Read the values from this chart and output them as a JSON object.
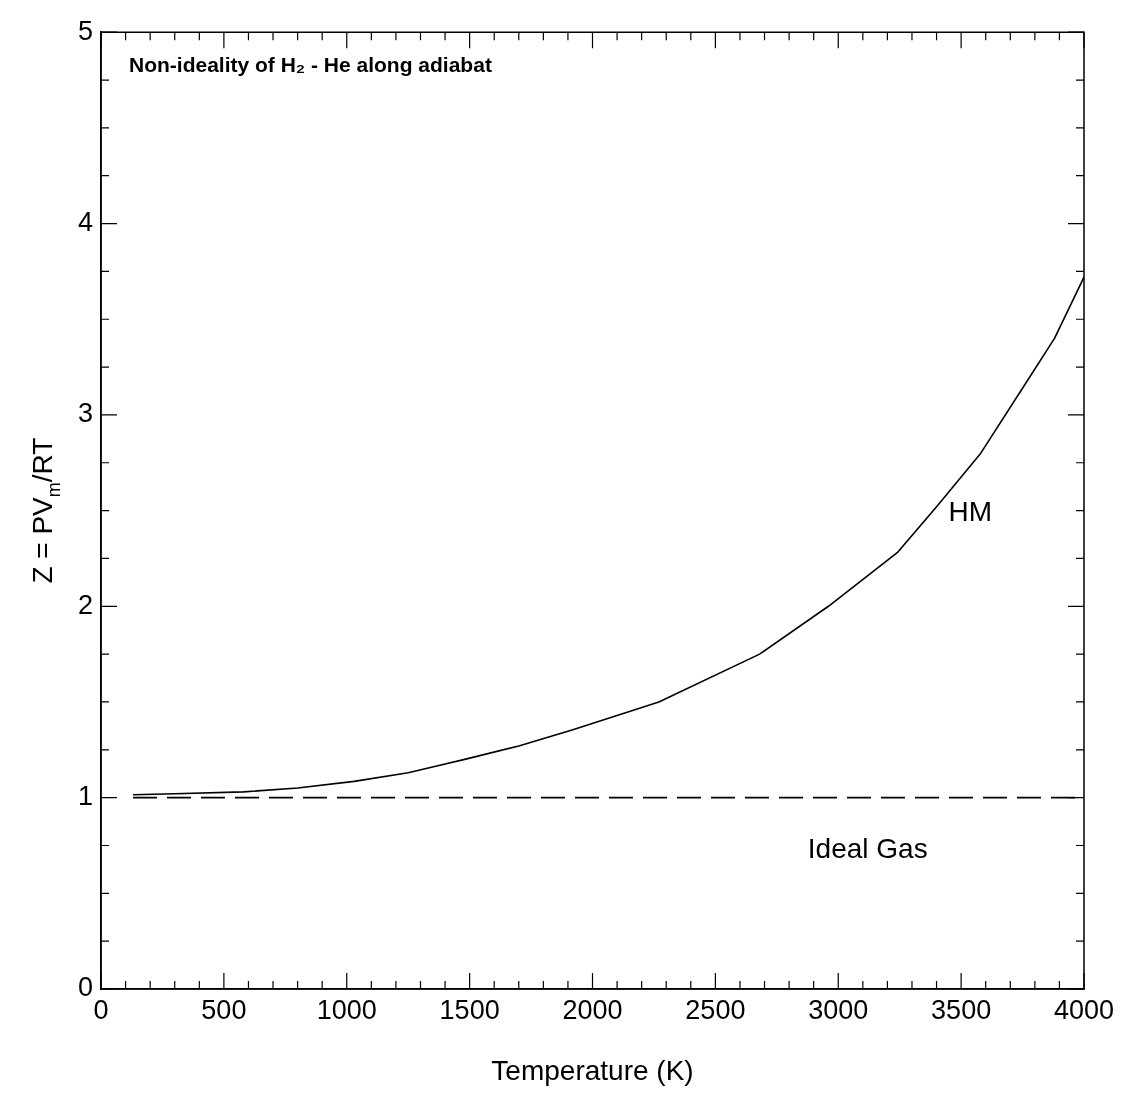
{
  "chart_data": {
    "type": "line",
    "title": "Non-ideality of H₂ - He along adiabat",
    "xlabel": "Temperature (K)",
    "ylabel": "Z = PV$_{m}$/RT",
    "xlim": [
      0,
      4000
    ],
    "ylim": [
      0,
      5
    ],
    "xticks": [
      0,
      {
        "value": 100,
        "label": null
      },
      {
        "value": 200,
        "label": null
      },
      {
        "value": 300,
        "label": null
      },
      {
        "value": 400,
        "label": null
      },
      500,
      {
        "value": 600,
        "label": null
      },
      {
        "value": 700,
        "label": null
      },
      {
        "value": 800,
        "label": null
      },
      {
        "value": 900,
        "label": null
      },
      1000,
      {
        "value": 1100,
        "label": null
      },
      {
        "value": 1200,
        "label": null
      },
      {
        "value": 1300,
        "label": null
      },
      {
        "value": 1400,
        "label": null
      },
      1500,
      {
        "value": 1600,
        "label": null
      },
      {
        "value": 1700,
        "label": null
      },
      {
        "value": 1800,
        "label": null
      },
      {
        "value": 1900,
        "label": null
      },
      2000,
      {
        "value": 2100,
        "label": null
      },
      {
        "value": 2200,
        "label": null
      },
      {
        "value": 2300,
        "label": null
      },
      {
        "value": 2400,
        "label": null
      },
      2500,
      {
        "value": 2600,
        "label": null
      },
      {
        "value": 2700,
        "label": null
      },
      {
        "value": 2800,
        "label": null
      },
      {
        "value": 2900,
        "label": null
      },
      3000,
      {
        "value": 3100,
        "label": null
      },
      {
        "value": 3200,
        "label": null
      },
      {
        "value": 3300,
        "label": null
      },
      {
        "value": 3400,
        "label": null
      },
      3500,
      {
        "value": 3600,
        "label": null
      },
      {
        "value": 3700,
        "label": null
      },
      {
        "value": 3800,
        "label": null
      },
      {
        "value": 3900,
        "label": null
      },
      4000
    ],
    "yticks": [
      0,
      {
        "value": 0.25,
        "label": null
      },
      {
        "value": 0.5,
        "label": null
      },
      {
        "value": 0.75,
        "label": null
      },
      1,
      {
        "value": 1.25,
        "label": null
      },
      {
        "value": 1.5,
        "label": null
      },
      {
        "value": 1.75,
        "label": null
      },
      2,
      {
        "value": 2.25,
        "label": null
      },
      {
        "value": 2.5,
        "label": null
      },
      {
        "value": 2.75,
        "label": null
      },
      3,
      {
        "value": 3.25,
        "label": null
      },
      {
        "value": 3.5,
        "label": null
      },
      {
        "value": 3.75,
        "label": null
      },
      4,
      {
        "value": 4.25,
        "label": null
      },
      {
        "value": 4.5,
        "label": null
      },
      {
        "value": 4.75,
        "label": null
      },
      5
    ],
    "series": [
      {
        "name": "HM",
        "color": "#000000",
        "line_style": "solid",
        "x": [
          130,
          300,
          580,
          800,
          1030,
          1250,
          1480,
          1700,
          1920,
          2270,
          2680,
          2960,
          3240,
          3400,
          3580,
          3740,
          3880,
          4000
        ],
        "values": [
          1.015,
          1.02,
          1.03,
          1.05,
          1.085,
          1.13,
          1.2,
          1.27,
          1.355,
          1.5,
          1.75,
          2.0,
          2.28,
          2.52,
          2.8,
          3.12,
          3.4,
          3.72
        ]
      },
      {
        "name": "Ideal Gas",
        "color": "#000000",
        "line_style": "dashed",
        "x": [
          130,
          4000
        ],
        "values": [
          1,
          1
        ]
      }
    ]
  }
}
